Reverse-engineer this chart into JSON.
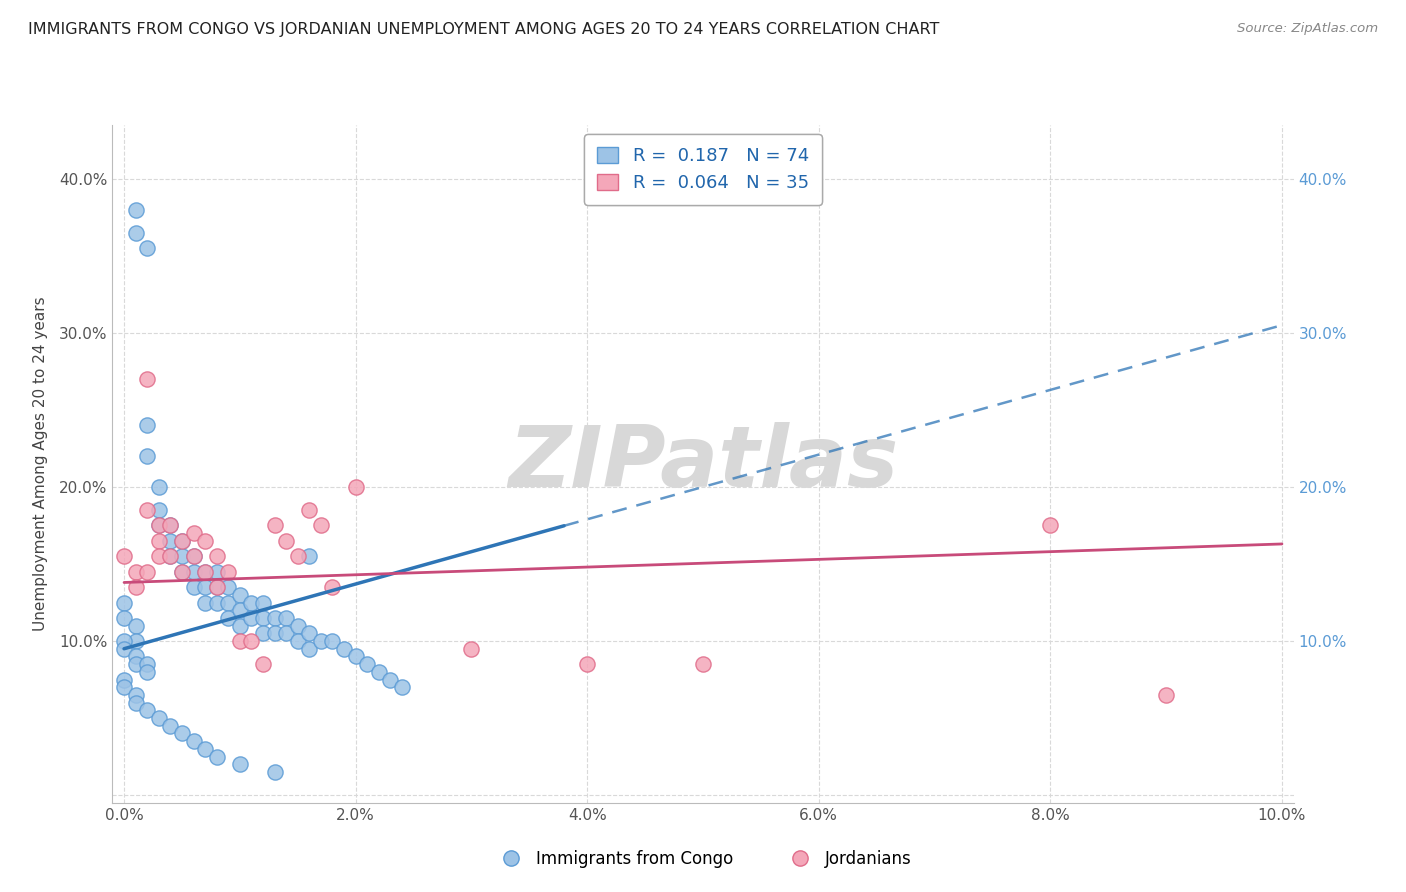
{
  "title": "IMMIGRANTS FROM CONGO VS JORDANIAN UNEMPLOYMENT AMONG AGES 20 TO 24 YEARS CORRELATION CHART",
  "source": "Source: ZipAtlas.com",
  "ylabel": "Unemployment Among Ages 20 to 24 years",
  "xlim": [
    -0.001,
    0.101
  ],
  "ylim": [
    -0.005,
    0.435
  ],
  "xticks": [
    0.0,
    0.02,
    0.04,
    0.06,
    0.08,
    0.1
  ],
  "xtick_labels": [
    "0.0%",
    "2.0%",
    "4.0%",
    "6.0%",
    "8.0%",
    "10.0%"
  ],
  "yticks": [
    0.0,
    0.1,
    0.2,
    0.3,
    0.4
  ],
  "ytick_labels": [
    "",
    "10.0%",
    "20.0%",
    "30.0%",
    "40.0%"
  ],
  "right_ytick_color": "#5b9bd5",
  "legend_labels": [
    "Immigrants from Congo",
    "Jordanians"
  ],
  "legend_R": [
    0.187,
    0.064
  ],
  "legend_N": [
    74,
    35
  ],
  "blue_color": "#9dc3e6",
  "pink_color": "#f4a7b9",
  "blue_edge_color": "#5b9bd5",
  "pink_edge_color": "#e06c8a",
  "blue_line_color": "#2e75b6",
  "pink_line_color": "#c84b7a",
  "watermark": "ZIPatlas",
  "watermark_color": "#d8d8d8",
  "grid_color": "#d9d9d9",
  "blue_trend_y0": 0.095,
  "blue_trend_y1": 0.305,
  "blue_solid_xend": 0.038,
  "pink_trend_y0": 0.138,
  "pink_trend_y1": 0.163,
  "pink_trend_xend": 0.1,
  "blue_scatter_x": [
    0.001,
    0.001,
    0.002,
    0.002,
    0.002,
    0.003,
    0.003,
    0.003,
    0.004,
    0.004,
    0.004,
    0.005,
    0.005,
    0.005,
    0.006,
    0.006,
    0.006,
    0.007,
    0.007,
    0.007,
    0.008,
    0.008,
    0.008,
    0.009,
    0.009,
    0.009,
    0.01,
    0.01,
    0.01,
    0.011,
    0.011,
    0.012,
    0.012,
    0.012,
    0.013,
    0.013,
    0.014,
    0.014,
    0.015,
    0.015,
    0.016,
    0.016,
    0.017,
    0.018,
    0.019,
    0.02,
    0.021,
    0.022,
    0.023,
    0.024,
    0.0,
    0.0,
    0.001,
    0.001,
    0.0,
    0.0,
    0.001,
    0.001,
    0.002,
    0.002,
    0.0,
    0.0,
    0.001,
    0.001,
    0.002,
    0.003,
    0.004,
    0.005,
    0.006,
    0.007,
    0.008,
    0.01,
    0.013,
    0.016
  ],
  "blue_scatter_y": [
    0.38,
    0.365,
    0.355,
    0.24,
    0.22,
    0.2,
    0.185,
    0.175,
    0.175,
    0.165,
    0.155,
    0.165,
    0.155,
    0.145,
    0.155,
    0.145,
    0.135,
    0.145,
    0.135,
    0.125,
    0.145,
    0.135,
    0.125,
    0.135,
    0.125,
    0.115,
    0.13,
    0.12,
    0.11,
    0.125,
    0.115,
    0.125,
    0.115,
    0.105,
    0.115,
    0.105,
    0.115,
    0.105,
    0.11,
    0.1,
    0.105,
    0.095,
    0.1,
    0.1,
    0.095,
    0.09,
    0.085,
    0.08,
    0.075,
    0.07,
    0.125,
    0.115,
    0.11,
    0.1,
    0.1,
    0.095,
    0.09,
    0.085,
    0.085,
    0.08,
    0.075,
    0.07,
    0.065,
    0.06,
    0.055,
    0.05,
    0.045,
    0.04,
    0.035,
    0.03,
    0.025,
    0.02,
    0.015,
    0.155
  ],
  "pink_scatter_x": [
    0.0,
    0.001,
    0.001,
    0.002,
    0.002,
    0.002,
    0.003,
    0.003,
    0.003,
    0.004,
    0.004,
    0.005,
    0.005,
    0.006,
    0.006,
    0.007,
    0.007,
    0.008,
    0.008,
    0.009,
    0.01,
    0.011,
    0.012,
    0.013,
    0.014,
    0.015,
    0.016,
    0.017,
    0.018,
    0.02,
    0.03,
    0.04,
    0.05,
    0.08,
    0.09
  ],
  "pink_scatter_y": [
    0.155,
    0.145,
    0.135,
    0.27,
    0.185,
    0.145,
    0.175,
    0.165,
    0.155,
    0.175,
    0.155,
    0.165,
    0.145,
    0.17,
    0.155,
    0.165,
    0.145,
    0.155,
    0.135,
    0.145,
    0.1,
    0.1,
    0.085,
    0.175,
    0.165,
    0.155,
    0.185,
    0.175,
    0.135,
    0.2,
    0.095,
    0.085,
    0.085,
    0.175,
    0.065
  ]
}
